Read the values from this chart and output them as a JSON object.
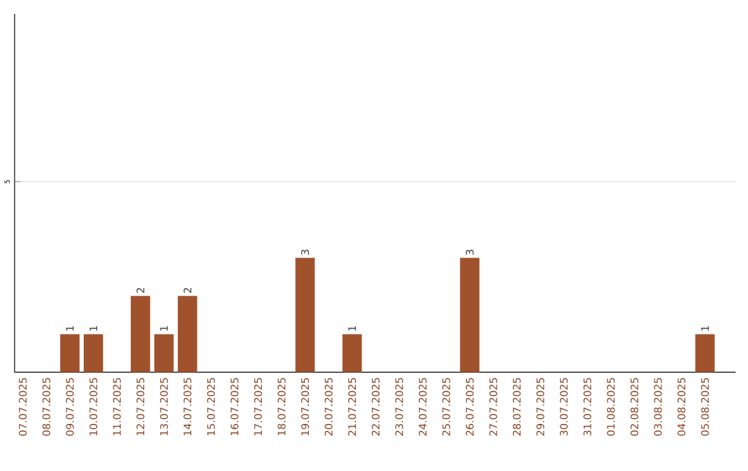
{
  "chart_data": {
    "type": "bar",
    "categories": [
      "07.07.2025",
      "08.07.2025",
      "09.07.2025",
      "10.07.2025",
      "11.07.2025",
      "12.07.2025",
      "13.07.2025",
      "14.07.2025",
      "15.07.2025",
      "16.07.2025",
      "17.07.2025",
      "18.07.2025",
      "19.07.2025",
      "20.07.2025",
      "21.07.2025",
      "22.07.2025",
      "23.07.2025",
      "24.07.2025",
      "25.07.2025",
      "26.07.2025",
      "27.07.2025",
      "28.07.2025",
      "29.07.2025",
      "30.07.2025",
      "31.07.2025",
      "01.08.2025",
      "02.08.2025",
      "03.08.2025",
      "04.08.2025",
      "05.08.2025"
    ],
    "values": [
      0,
      0,
      1,
      1,
      0,
      2,
      1,
      2,
      0,
      0,
      0,
      0,
      3,
      0,
      1,
      0,
      0,
      0,
      0,
      3,
      0,
      0,
      0,
      0,
      0,
      0,
      0,
      0,
      0,
      1
    ],
    "value_labels": [
      null,
      null,
      "1",
      "1",
      null,
      "2",
      "1",
      "2",
      null,
      null,
      null,
      null,
      "3",
      null,
      "1",
      null,
      null,
      null,
      null,
      "3",
      null,
      null,
      null,
      null,
      null,
      null,
      null,
      null,
      null,
      "1"
    ],
    "color": "#a0522d",
    "ylim": [
      0,
      9.4
    ],
    "yticks": [
      5
    ],
    "grid": "y"
  }
}
